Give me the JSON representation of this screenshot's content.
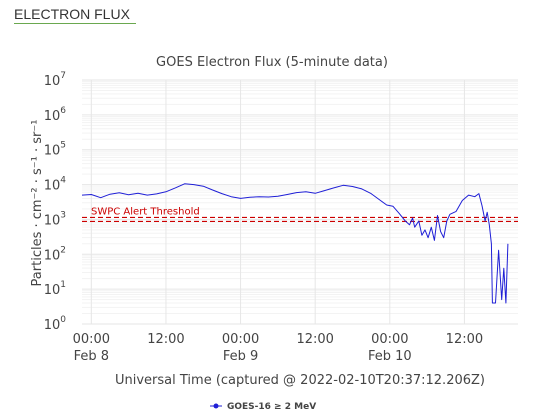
{
  "header": {
    "link_label": "ELECTRON FLUX"
  },
  "chart_data": {
    "type": "line",
    "title": "GOES Electron Flux (5-minute data)",
    "ylabel": "Particles · cm⁻² · s⁻¹ · sr⁻¹",
    "xlabel": "Universal Time (captured @ 2022-02-10T20:37:12.206Z)",
    "y_scale": "log",
    "ylim": [
      1,
      10000000
    ],
    "y_ticks": [
      {
        "value": 1,
        "base": "10",
        "exp": "0"
      },
      {
        "value": 10,
        "base": "10",
        "exp": "1"
      },
      {
        "value": 100,
        "base": "10",
        "exp": "2"
      },
      {
        "value": 1000,
        "base": "10",
        "exp": "3"
      },
      {
        "value": 10000,
        "base": "10",
        "exp": "4"
      },
      {
        "value": 100000,
        "base": "10",
        "exp": "5"
      },
      {
        "value": 1000000,
        "base": "10",
        "exp": "6"
      },
      {
        "value": 10000000,
        "base": "10",
        "exp": "7"
      }
    ],
    "xlim": [
      "2022-02-07T22:30Z",
      "2022-02-10T20:37Z"
    ],
    "x_ticks": [
      {
        "t": "2022-02-08T00:00Z",
        "time": "00:00",
        "date": "Feb 8"
      },
      {
        "t": "2022-02-08T12:00Z",
        "time": "12:00",
        "date": ""
      },
      {
        "t": "2022-02-09T00:00Z",
        "time": "00:00",
        "date": "Feb 9"
      },
      {
        "t": "2022-02-09T12:00Z",
        "time": "12:00",
        "date": ""
      },
      {
        "t": "2022-02-10T00:00Z",
        "time": "00:00",
        "date": "Feb 10"
      },
      {
        "t": "2022-02-10T12:00Z",
        "time": "12:00",
        "date": ""
      }
    ],
    "threshold": {
      "label": "SWPC Alert Threshold",
      "value": 1000,
      "color": "#cc0000"
    },
    "grid": true,
    "legend_position": "bottom-center",
    "series": [
      {
        "name": "GOES-16 ≥ 2 MeV",
        "color": "#1f1fd6",
        "points": [
          [
            "2022-02-07T22:30Z",
            5000
          ],
          [
            "2022-02-08T00:00Z",
            5200
          ],
          [
            "2022-02-08T01:30Z",
            4200
          ],
          [
            "2022-02-08T03:00Z",
            5300
          ],
          [
            "2022-02-08T04:30Z",
            5800
          ],
          [
            "2022-02-08T06:00Z",
            5100
          ],
          [
            "2022-02-08T07:30Z",
            5600
          ],
          [
            "2022-02-08T09:00Z",
            5000
          ],
          [
            "2022-02-08T10:30Z",
            5400
          ],
          [
            "2022-02-08T12:00Z",
            6200
          ],
          [
            "2022-02-08T13:30Z",
            8000
          ],
          [
            "2022-02-08T15:00Z",
            10500
          ],
          [
            "2022-02-08T16:30Z",
            10000
          ],
          [
            "2022-02-08T18:00Z",
            9000
          ],
          [
            "2022-02-08T19:30Z",
            7000
          ],
          [
            "2022-02-08T21:00Z",
            5500
          ],
          [
            "2022-02-08T22:30Z",
            4500
          ],
          [
            "2022-02-09T00:00Z",
            4000
          ],
          [
            "2022-02-09T01:30Z",
            4300
          ],
          [
            "2022-02-09T03:00Z",
            4500
          ],
          [
            "2022-02-09T04:30Z",
            4400
          ],
          [
            "2022-02-09T06:00Z",
            4600
          ],
          [
            "2022-02-09T07:30Z",
            5200
          ],
          [
            "2022-02-09T09:00Z",
            5900
          ],
          [
            "2022-02-09T10:30Z",
            6200
          ],
          [
            "2022-02-09T12:00Z",
            5600
          ],
          [
            "2022-02-09T13:30Z",
            6700
          ],
          [
            "2022-02-09T15:00Z",
            8000
          ],
          [
            "2022-02-09T16:30Z",
            9500
          ],
          [
            "2022-02-09T18:00Z",
            8800
          ],
          [
            "2022-02-09T19:30Z",
            7500
          ],
          [
            "2022-02-09T21:00Z",
            5500
          ],
          [
            "2022-02-09T22:30Z",
            3500
          ],
          [
            "2022-02-09T23:30Z",
            2600
          ],
          [
            "2022-02-10T00:30Z",
            2400
          ],
          [
            "2022-02-10T01:30Z",
            1500
          ],
          [
            "2022-02-10T02:30Z",
            900
          ],
          [
            "2022-02-10T03:10Z",
            700
          ],
          [
            "2022-02-10T03:40Z",
            1100
          ],
          [
            "2022-02-10T04:00Z",
            600
          ],
          [
            "2022-02-10T04:40Z",
            900
          ],
          [
            "2022-02-10T05:10Z",
            350
          ],
          [
            "2022-02-10T05:40Z",
            500
          ],
          [
            "2022-02-10T06:10Z",
            300
          ],
          [
            "2022-02-10T06:40Z",
            600
          ],
          [
            "2022-02-10T07:10Z",
            250
          ],
          [
            "2022-02-10T07:40Z",
            1300
          ],
          [
            "2022-02-10T08:10Z",
            450
          ],
          [
            "2022-02-10T08:40Z",
            300
          ],
          [
            "2022-02-10T09:10Z",
            900
          ],
          [
            "2022-02-10T09:40Z",
            1400
          ],
          [
            "2022-02-10T10:40Z",
            1700
          ],
          [
            "2022-02-10T11:40Z",
            3500
          ],
          [
            "2022-02-10T12:40Z",
            5000
          ],
          [
            "2022-02-10T13:40Z",
            4500
          ],
          [
            "2022-02-10T14:20Z",
            5500
          ],
          [
            "2022-02-10T14:50Z",
            2500
          ],
          [
            "2022-02-10T15:20Z",
            900
          ],
          [
            "2022-02-10T15:40Z",
            1600
          ],
          [
            "2022-02-10T16:00Z",
            700
          ],
          [
            "2022-02-10T16:20Z",
            200
          ],
          [
            "2022-02-10T16:30Z",
            4
          ],
          [
            "2022-02-10T17:00Z",
            4
          ],
          [
            "2022-02-10T17:30Z",
            130
          ],
          [
            "2022-02-10T18:00Z",
            5
          ],
          [
            "2022-02-10T18:20Z",
            40
          ],
          [
            "2022-02-10T18:40Z",
            4
          ],
          [
            "2022-02-10T19:00Z",
            200
          ]
        ]
      }
    ]
  }
}
